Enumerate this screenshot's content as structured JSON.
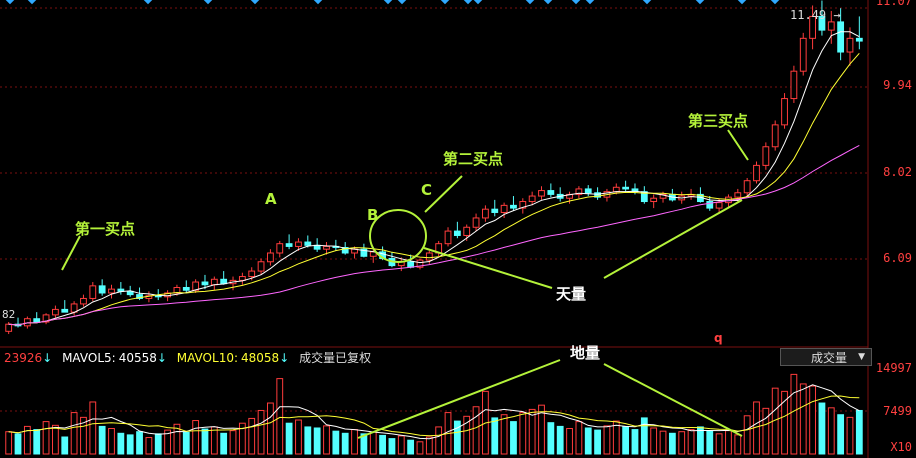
{
  "colors": {
    "background": "#000000",
    "up": "#ff3c3c",
    "down": "#54ffff",
    "ma_short": "#ffffff",
    "ma_mid": "#ffff33",
    "ma_long": "#ff66ff",
    "grid": "#7a1010",
    "annotation": "#b4f23a"
  },
  "price_axis": {
    "ticks": [
      "11.07",
      "9.94",
      "8.02",
      "6.09"
    ],
    "top_left_value": "11.49",
    "bottom_left_value": "82"
  },
  "volume_axis": {
    "ticks": [
      "14997",
      "7499",
      "X10"
    ]
  },
  "volume_legend": {
    "vol": "23926",
    "mavol5_label": "MAVOL5:",
    "mavol5": "40558",
    "mavol10_label": "MAVOL10:",
    "mavol10": "48058",
    "text": "成交量已复权",
    "dropdown": "成交量",
    "marker": "q"
  },
  "annotations": {
    "buy1": "第一买点",
    "buy2": "第二买点",
    "buy3": "第三买点",
    "a": "A",
    "b": "B",
    "c": "C",
    "tianliang": "天量",
    "diliang": "地量"
  },
  "chart_data": {
    "type": "candlestick",
    "ylim": [
      5.2,
      11.5
    ],
    "grid": true,
    "candles": [
      [
        5.45,
        5.62,
        5.4,
        5.58
      ],
      [
        5.58,
        5.7,
        5.52,
        5.55
      ],
      [
        5.55,
        5.72,
        5.5,
        5.68
      ],
      [
        5.68,
        5.8,
        5.6,
        5.62
      ],
      [
        5.62,
        5.78,
        5.58,
        5.75
      ],
      [
        5.75,
        5.92,
        5.7,
        5.85
      ],
      [
        5.85,
        6.02,
        5.8,
        5.8
      ],
      [
        5.8,
        6.0,
        5.74,
        5.95
      ],
      [
        5.95,
        6.12,
        5.9,
        6.05
      ],
      [
        6.05,
        6.35,
        6.0,
        6.28
      ],
      [
        6.28,
        6.4,
        6.1,
        6.15
      ],
      [
        6.15,
        6.3,
        6.05,
        6.22
      ],
      [
        6.22,
        6.35,
        6.12,
        6.18
      ],
      [
        6.18,
        6.28,
        6.08,
        6.12
      ],
      [
        6.12,
        6.25,
        6.02,
        6.05
      ],
      [
        6.05,
        6.18,
        5.98,
        6.1
      ],
      [
        6.1,
        6.22,
        6.02,
        6.08
      ],
      [
        6.08,
        6.2,
        6.0,
        6.15
      ],
      [
        6.15,
        6.3,
        6.1,
        6.25
      ],
      [
        6.25,
        6.38,
        6.15,
        6.2
      ],
      [
        6.2,
        6.4,
        6.15,
        6.35
      ],
      [
        6.35,
        6.48,
        6.22,
        6.3
      ],
      [
        6.3,
        6.45,
        6.2,
        6.4
      ],
      [
        6.4,
        6.55,
        6.3,
        6.32
      ],
      [
        6.32,
        6.45,
        6.2,
        6.38
      ],
      [
        6.38,
        6.52,
        6.3,
        6.45
      ],
      [
        6.45,
        6.62,
        6.38,
        6.55
      ],
      [
        6.55,
        6.78,
        6.48,
        6.72
      ],
      [
        6.72,
        6.95,
        6.65,
        6.88
      ],
      [
        6.88,
        7.1,
        6.8,
        7.05
      ],
      [
        7.05,
        7.22,
        6.95,
        7.0
      ],
      [
        7.0,
        7.15,
        6.92,
        7.08
      ],
      [
        7.08,
        7.2,
        6.98,
        7.02
      ],
      [
        7.02,
        7.15,
        6.9,
        6.95
      ],
      [
        6.95,
        7.08,
        6.85,
        7.0
      ],
      [
        7.0,
        7.12,
        6.92,
        6.98
      ],
      [
        6.98,
        7.08,
        6.85,
        6.88
      ],
      [
        6.88,
        7.0,
        6.78,
        6.95
      ],
      [
        6.95,
        7.05,
        6.8,
        6.82
      ],
      [
        6.82,
        6.95,
        6.7,
        6.9
      ],
      [
        6.9,
        7.0,
        6.75,
        6.78
      ],
      [
        6.78,
        6.9,
        6.62,
        6.65
      ],
      [
        6.65,
        6.8,
        6.55,
        6.72
      ],
      [
        6.72,
        6.85,
        6.6,
        6.62
      ],
      [
        6.62,
        6.78,
        6.58,
        6.75
      ],
      [
        6.75,
        6.92,
        6.68,
        6.88
      ],
      [
        6.88,
        7.1,
        6.82,
        7.05
      ],
      [
        7.05,
        7.35,
        7.0,
        7.28
      ],
      [
        7.28,
        7.45,
        7.15,
        7.2
      ],
      [
        7.2,
        7.4,
        7.1,
        7.35
      ],
      [
        7.35,
        7.6,
        7.28,
        7.52
      ],
      [
        7.52,
        7.75,
        7.45,
        7.68
      ],
      [
        7.68,
        7.85,
        7.55,
        7.62
      ],
      [
        7.62,
        7.8,
        7.52,
        7.75
      ],
      [
        7.75,
        7.92,
        7.65,
        7.7
      ],
      [
        7.7,
        7.88,
        7.6,
        7.82
      ],
      [
        7.82,
        8.0,
        7.75,
        7.92
      ],
      [
        7.92,
        8.1,
        7.85,
        8.02
      ],
      [
        8.02,
        8.15,
        7.9,
        7.95
      ],
      [
        7.95,
        8.08,
        7.82,
        7.88
      ],
      [
        7.88,
        8.0,
        7.78,
        7.95
      ],
      [
        7.95,
        8.1,
        7.88,
        8.05
      ],
      [
        8.05,
        8.12,
        7.92,
        7.98
      ],
      [
        7.98,
        8.08,
        7.85,
        7.9
      ],
      [
        7.9,
        8.05,
        7.82,
        8.0
      ],
      [
        8.0,
        8.15,
        7.95,
        8.08
      ],
      [
        8.08,
        8.2,
        7.98,
        8.05
      ],
      [
        8.05,
        8.15,
        7.95,
        8.0
      ],
      [
        8.0,
        8.1,
        7.78,
        7.82
      ],
      [
        7.82,
        7.95,
        7.7,
        7.88
      ],
      [
        7.88,
        8.0,
        7.8,
        7.95
      ],
      [
        7.95,
        8.05,
        7.82,
        7.85
      ],
      [
        7.85,
        8.0,
        7.78,
        7.92
      ],
      [
        7.92,
        8.05,
        7.85,
        7.95
      ],
      [
        7.95,
        8.08,
        7.8,
        7.82
      ],
      [
        7.82,
        7.92,
        7.65,
        7.7
      ],
      [
        7.7,
        7.88,
        7.62,
        7.8
      ],
      [
        7.8,
        7.95,
        7.72,
        7.9
      ],
      [
        7.9,
        8.05,
        7.82,
        7.98
      ],
      [
        7.98,
        8.25,
        7.92,
        8.2
      ],
      [
        8.2,
        8.55,
        8.15,
        8.48
      ],
      [
        8.48,
        8.9,
        8.4,
        8.82
      ],
      [
        8.82,
        9.3,
        8.75,
        9.22
      ],
      [
        9.22,
        9.8,
        9.15,
        9.7
      ],
      [
        9.7,
        10.3,
        9.62,
        10.2
      ],
      [
        10.2,
        10.9,
        10.12,
        10.8
      ],
      [
        10.8,
        11.4,
        10.6,
        11.2
      ],
      [
        11.2,
        11.49,
        10.85,
        10.95
      ],
      [
        10.95,
        11.3,
        10.7,
        11.1
      ],
      [
        11.1,
        11.35,
        10.4,
        10.55
      ],
      [
        10.55,
        11.0,
        10.3,
        10.8
      ],
      [
        10.8,
        11.2,
        10.6,
        10.75
      ]
    ],
    "volumes": [
      [
        4200,
        1
      ],
      [
        3800,
        0
      ],
      [
        5200,
        1
      ],
      [
        4600,
        0
      ],
      [
        6100,
        1
      ],
      [
        5400,
        1
      ],
      [
        3200,
        0
      ],
      [
        7800,
        1
      ],
      [
        6900,
        1
      ],
      [
        9800,
        1
      ],
      [
        5200,
        0
      ],
      [
        4800,
        1
      ],
      [
        3900,
        0
      ],
      [
        3600,
        0
      ],
      [
        4200,
        0
      ],
      [
        3100,
        1
      ],
      [
        3800,
        0
      ],
      [
        4500,
        1
      ],
      [
        5600,
        1
      ],
      [
        4100,
        0
      ],
      [
        6300,
        1
      ],
      [
        4700,
        0
      ],
      [
        5100,
        1
      ],
      [
        3900,
        0
      ],
      [
        4400,
        1
      ],
      [
        5800,
        1
      ],
      [
        6700,
        1
      ],
      [
        8200,
        1
      ],
      [
        9600,
        1
      ],
      [
        14200,
        1
      ],
      [
        5800,
        0
      ],
      [
        6400,
        1
      ],
      [
        5100,
        0
      ],
      [
        4900,
        0
      ],
      [
        5300,
        1
      ],
      [
        4300,
        0
      ],
      [
        3900,
        0
      ],
      [
        4600,
        1
      ],
      [
        3800,
        0
      ],
      [
        4100,
        1
      ],
      [
        3500,
        0
      ],
      [
        2900,
        0
      ],
      [
        3400,
        1
      ],
      [
        2600,
        0
      ],
      [
        2300,
        1
      ],
      [
        3200,
        1
      ],
      [
        5100,
        1
      ],
      [
        7800,
        1
      ],
      [
        6200,
        0
      ],
      [
        7100,
        1
      ],
      [
        8900,
        1
      ],
      [
        11800,
        1
      ],
      [
        6800,
        0
      ],
      [
        7400,
        1
      ],
      [
        6100,
        0
      ],
      [
        7800,
        1
      ],
      [
        8400,
        1
      ],
      [
        9200,
        1
      ],
      [
        5900,
        0
      ],
      [
        5200,
        0
      ],
      [
        4800,
        1
      ],
      [
        6100,
        1
      ],
      [
        4900,
        0
      ],
      [
        4500,
        0
      ],
      [
        5300,
        1
      ],
      [
        6200,
        1
      ],
      [
        5100,
        0
      ],
      [
        4600,
        0
      ],
      [
        6800,
        0
      ],
      [
        4900,
        1
      ],
      [
        4300,
        1
      ],
      [
        3900,
        0
      ],
      [
        4200,
        1
      ],
      [
        4600,
        1
      ],
      [
        5100,
        0
      ],
      [
        4300,
        0
      ],
      [
        3800,
        1
      ],
      [
        4400,
        1
      ],
      [
        3600,
        1
      ],
      [
        7200,
        1
      ],
      [
        9800,
        1
      ],
      [
        8600,
        1
      ],
      [
        12400,
        1
      ],
      [
        11800,
        1
      ],
      [
        14997,
        1
      ],
      [
        13200,
        1
      ],
      [
        12800,
        1
      ],
      [
        9600,
        0
      ],
      [
        8700,
        1
      ],
      [
        7400,
        0
      ],
      [
        6900,
        1
      ],
      [
        8200,
        0
      ]
    ]
  }
}
